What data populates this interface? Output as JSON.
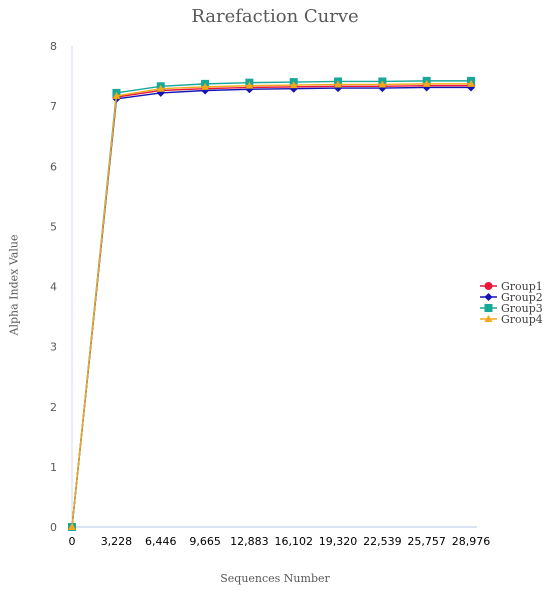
{
  "chart_data": {
    "type": "line",
    "title": "Rarefaction Curve",
    "xlabel": "Sequences Number",
    "ylabel": "Alpha Index Value",
    "x": [
      0,
      3228,
      6446,
      9665,
      12883,
      16102,
      19320,
      22539,
      25757,
      28976
    ],
    "x_tick_labels": [
      "0",
      "3,228",
      "6,446",
      "9,665",
      "12,883",
      "16,102",
      "19,320",
      "22,539",
      "25,757",
      "28,976"
    ],
    "ylim": [
      0,
      8
    ],
    "y_ticks": [
      0,
      1,
      2,
      3,
      4,
      5,
      6,
      7,
      8
    ],
    "grid": false,
    "legend_position": "right",
    "series": [
      {
        "name": "Group1",
        "color": "#e8173a",
        "marker": "circle",
        "values": [
          0,
          7.15,
          7.26,
          7.29,
          7.31,
          7.32,
          7.33,
          7.33,
          7.34,
          7.34
        ]
      },
      {
        "name": "Group2",
        "color": "#1414b4",
        "marker": "diamond",
        "values": [
          0,
          7.12,
          7.22,
          7.26,
          7.28,
          7.29,
          7.3,
          7.3,
          7.31,
          7.31
        ]
      },
      {
        "name": "Group3",
        "color": "#17a89a",
        "marker": "square",
        "values": [
          0,
          7.22,
          7.33,
          7.37,
          7.39,
          7.4,
          7.41,
          7.41,
          7.42,
          7.42
        ]
      },
      {
        "name": "Group4",
        "color": "#f2a81b",
        "marker": "triangle",
        "values": [
          0,
          7.17,
          7.29,
          7.32,
          7.34,
          7.35,
          7.36,
          7.36,
          7.37,
          7.37
        ]
      }
    ]
  }
}
